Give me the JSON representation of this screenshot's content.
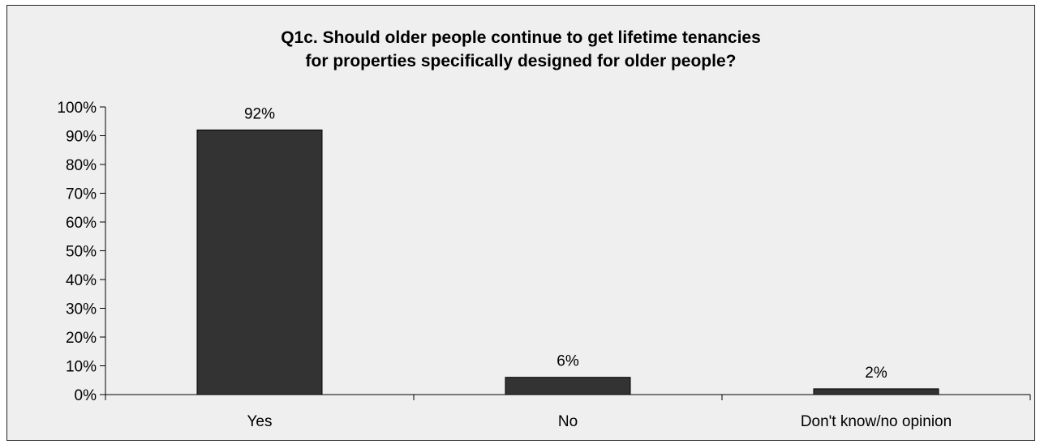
{
  "chart_data": {
    "type": "bar",
    "title_lines": [
      "Q1c. Should older people continue to get lifetime tenancies",
      "for properties specifically designed for older people?"
    ],
    "categories": [
      "Yes",
      "No",
      "Don't know/no opinion"
    ],
    "values": [
      92,
      6,
      2
    ],
    "data_labels": [
      "92%",
      "6%",
      "2%"
    ],
    "ylim": [
      0,
      100
    ],
    "yticks": [
      0,
      10,
      20,
      30,
      40,
      50,
      60,
      70,
      80,
      90,
      100
    ],
    "ytick_labels": [
      "0%",
      "10%",
      "20%",
      "30%",
      "40%",
      "50%",
      "60%",
      "70%",
      "80%",
      "90%",
      "100%"
    ],
    "xlabel": "",
    "ylabel": "",
    "grid": false,
    "bar_color": "#333333",
    "background_color": "#efefef"
  }
}
